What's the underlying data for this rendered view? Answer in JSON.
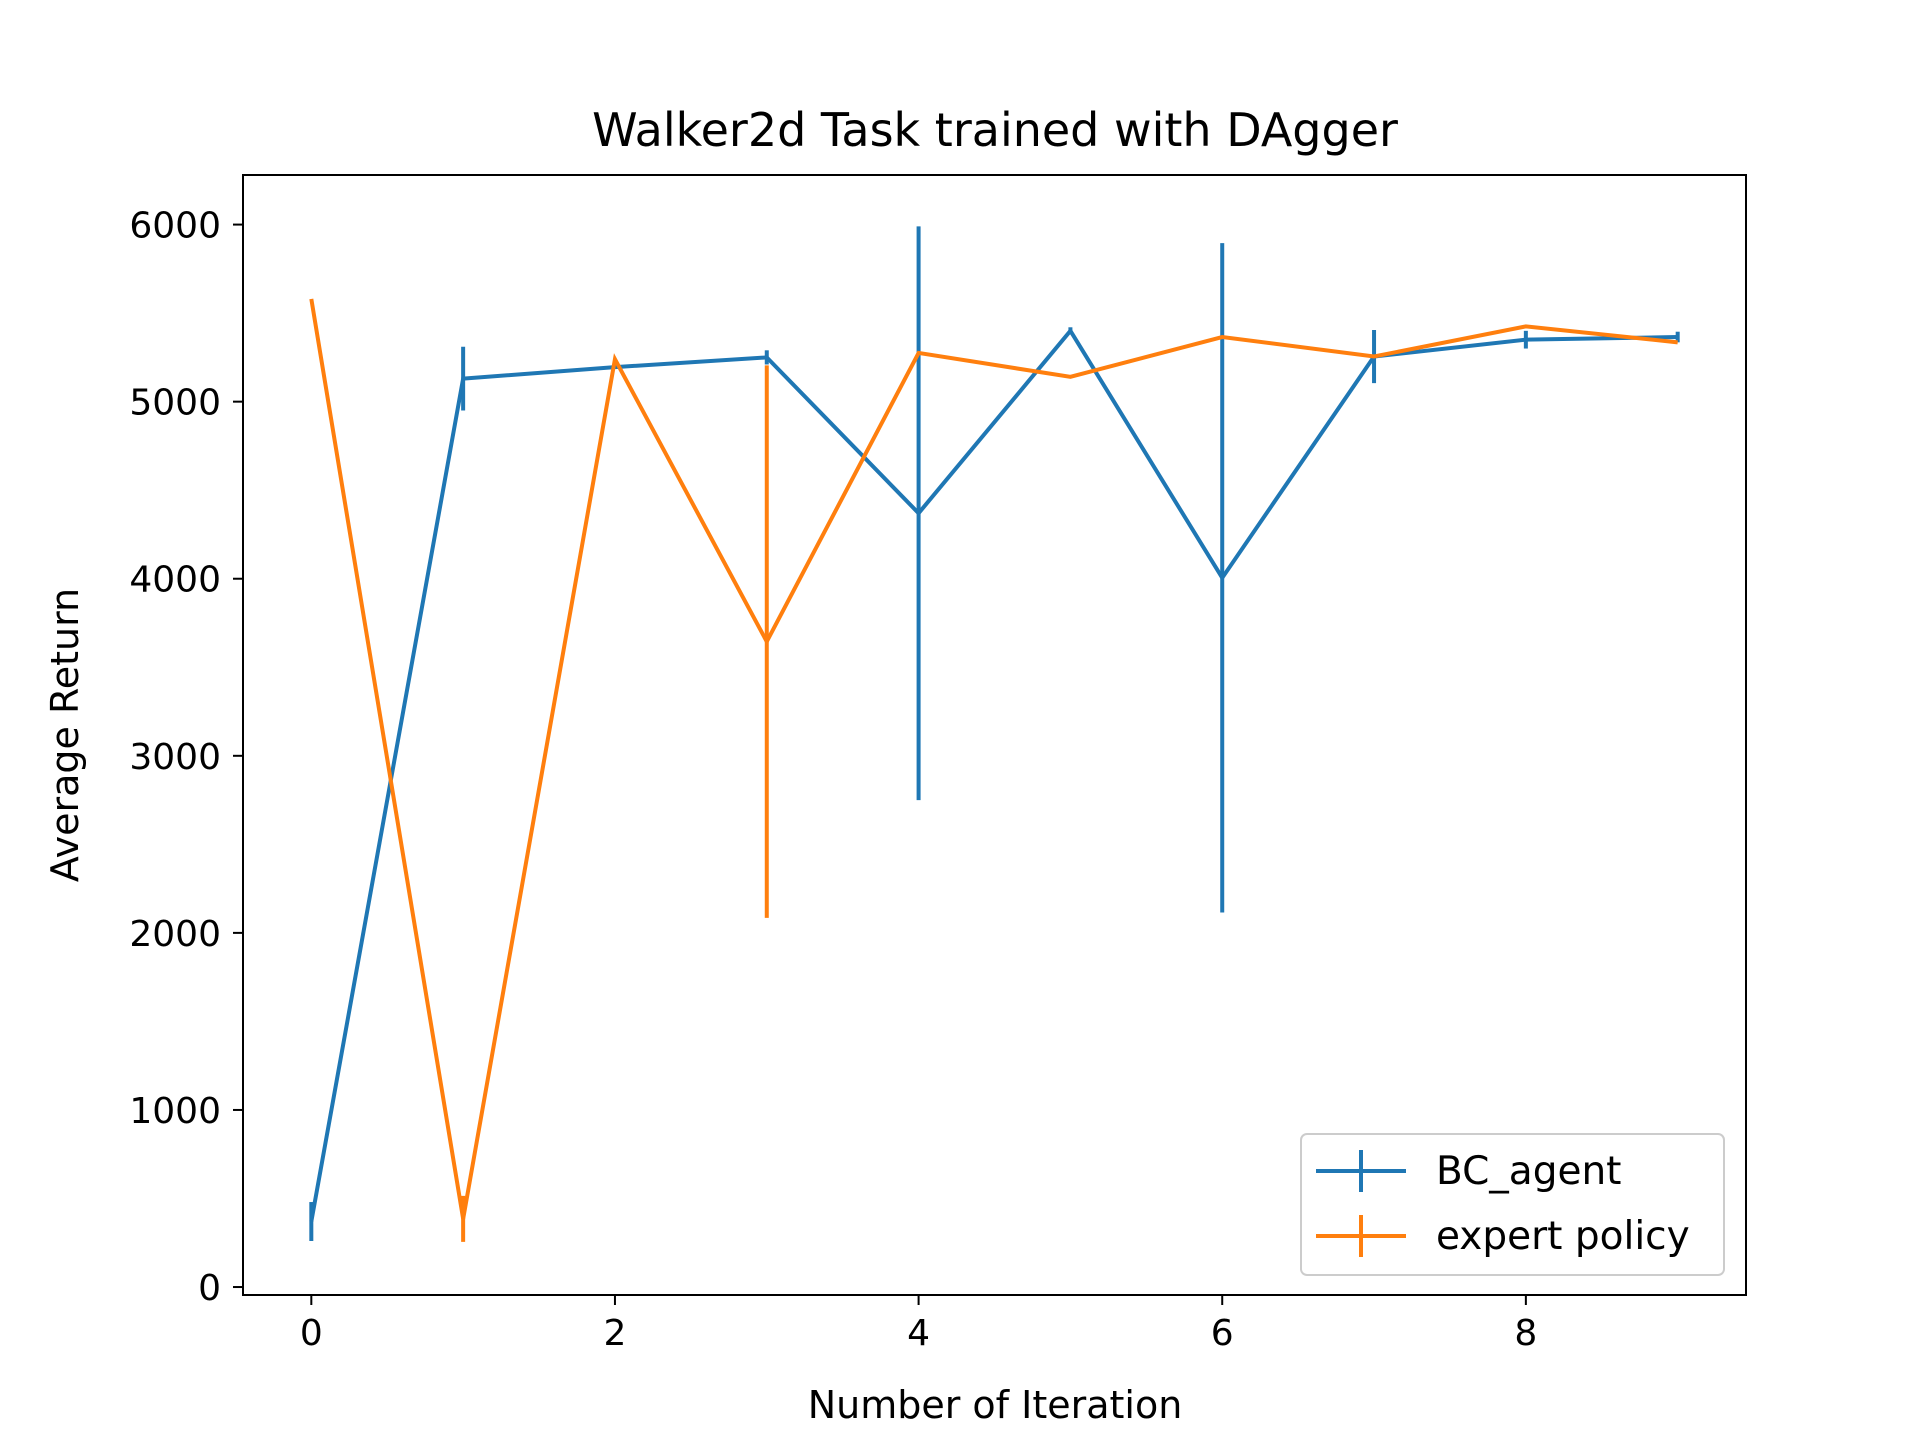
{
  "chart_data": {
    "type": "line",
    "title": "Walker2d Task trained with DAgger",
    "xlabel": "Number of Iteration",
    "ylabel": "Average Return",
    "xlim": [
      -0.45,
      9.45
    ],
    "ylim": [
      -45,
      6280
    ],
    "xticks": [
      0,
      2,
      4,
      6,
      8
    ],
    "yticks": [
      0,
      1000,
      2000,
      3000,
      4000,
      5000,
      6000
    ],
    "grid": false,
    "legend": {
      "placement": "lower-right",
      "entries": [
        "BC_agent",
        "expert policy"
      ]
    },
    "x": [
      0,
      1,
      2,
      3,
      4,
      5,
      6,
      7,
      8,
      9
    ],
    "series": [
      {
        "name": "BC_agent",
        "color": "#1f77b4",
        "values": [
          370,
          5130,
          5195,
          5250,
          4370,
          5400,
          4005,
          5255,
          5350,
          5365
        ],
        "errors": [
          110,
          180,
          10,
          40,
          1620,
          20,
          1890,
          150,
          50,
          30
        ]
      },
      {
        "name": "expert policy",
        "color": "#ff7f0e",
        "values": [
          5580,
          385,
          5240,
          3645,
          5275,
          5140,
          5365,
          5255,
          5425,
          5335
        ],
        "errors": [
          0,
          130,
          0,
          1560,
          0,
          0,
          0,
          0,
          0,
          0
        ]
      }
    ]
  }
}
